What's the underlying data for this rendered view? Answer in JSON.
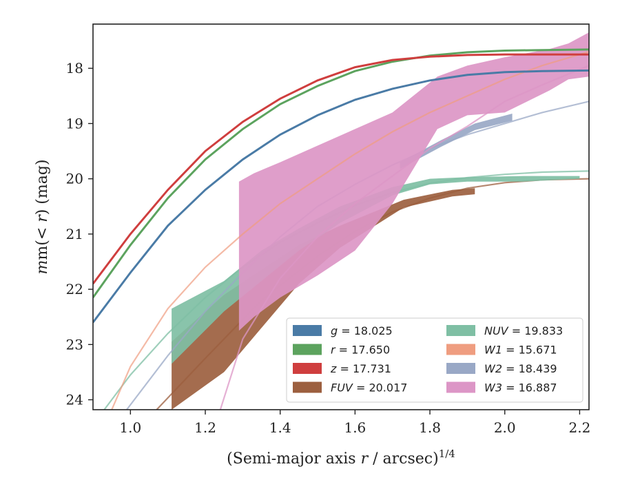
{
  "chart_data": {
    "type": "line",
    "xlabel_main": "(Semi-major axis ",
    "xlabel_var": "r",
    "xlabel_unit": " / arcsec)",
    "xlabel_power": "1/4",
    "ylabel_main": "m(< ",
    "ylabel_var": "r",
    "ylabel_unit": ") (mag)",
    "xlim": [
      0.9,
      2.225
    ],
    "ylim": [
      24.18,
      17.2
    ],
    "xticks": [
      1.0,
      1.2,
      1.4,
      1.6,
      1.8,
      2.0,
      2.2
    ],
    "xtick_labels": [
      "1.0",
      "1.2",
      "1.4",
      "1.6",
      "1.8",
      "2.0",
      "2.2"
    ],
    "yticks": [
      18,
      19,
      20,
      21,
      22,
      23,
      24
    ],
    "ytick_labels": [
      "18",
      "19",
      "20",
      "21",
      "22",
      "23",
      "24"
    ],
    "grid": false,
    "legend_position": "lower-right",
    "legend": [
      {
        "id": "g",
        "var": "g",
        "label": "g = 18.025",
        "color": "#4a7ba6"
      },
      {
        "id": "r",
        "var": "r",
        "label": "r = 17.650",
        "color": "#5ca35e"
      },
      {
        "id": "z",
        "var": "z",
        "label": "z = 17.731",
        "color": "#cf3e3e"
      },
      {
        "id": "fuv",
        "var": "FUV",
        "label": "FUV = 20.017",
        "color": "#9c5f3f"
      },
      {
        "id": "nuv",
        "var": "NUV",
        "label": "NUV = 19.833",
        "color": "#7fbfa4"
      },
      {
        "id": "w1",
        "var": "W1",
        "label": "W1 = 15.671",
        "color": "#ef9d80"
      },
      {
        "id": "w2",
        "var": "W2",
        "label": "W2 = 18.439",
        "color": "#99a8c6"
      },
      {
        "id": "w3",
        "var": "W3",
        "label": "W3 = 16.887",
        "color": "#dc96c6"
      }
    ],
    "series": [
      {
        "name": "g = 18.025",
        "kind": "line",
        "color": "#4a7ba6",
        "x": [
          0.9,
          1.0,
          1.1,
          1.2,
          1.3,
          1.4,
          1.5,
          1.6,
          1.7,
          1.8,
          1.9,
          2.0,
          2.1,
          2.225
        ],
        "y": [
          22.6,
          21.7,
          20.85,
          20.2,
          19.65,
          19.2,
          18.85,
          18.57,
          18.37,
          18.22,
          18.12,
          18.07,
          18.05,
          18.04
        ]
      },
      {
        "name": "r = 17.650",
        "kind": "line",
        "color": "#5ca35e",
        "x": [
          0.9,
          1.0,
          1.1,
          1.2,
          1.3,
          1.4,
          1.5,
          1.6,
          1.7,
          1.8,
          1.9,
          2.0,
          2.1,
          2.225
        ],
        "y": [
          22.15,
          21.2,
          20.35,
          19.65,
          19.1,
          18.65,
          18.32,
          18.05,
          17.88,
          17.77,
          17.71,
          17.68,
          17.67,
          17.66
        ]
      },
      {
        "name": "z = 17.731",
        "kind": "line",
        "color": "#cf3e3e",
        "x": [
          0.9,
          1.0,
          1.1,
          1.2,
          1.3,
          1.4,
          1.5,
          1.6,
          1.7,
          1.8,
          1.9,
          2.0,
          2.1,
          2.225
        ],
        "y": [
          21.9,
          21.0,
          20.2,
          19.5,
          18.97,
          18.55,
          18.22,
          17.98,
          17.85,
          17.79,
          17.76,
          17.75,
          17.75,
          17.75
        ]
      },
      {
        "name": "FUV = 20.017",
        "kind": "band",
        "color": "#9c5f3f",
        "x": [
          1.11,
          1.25,
          1.35,
          1.45,
          1.56,
          1.73,
          1.86,
          1.92
        ],
        "lo": [
          22.95,
          22.1,
          21.65,
          21.2,
          20.85,
          20.38,
          20.2,
          20.17
        ],
        "hi": [
          24.18,
          23.5,
          22.7,
          21.9,
          21.25,
          20.52,
          20.32,
          20.28
        ],
        "model_x": [
          1.07,
          1.2,
          1.35,
          1.5,
          1.6,
          1.7,
          1.8,
          1.9,
          2.0,
          2.1,
          2.225
        ],
        "model_y": [
          24.18,
          23.25,
          22.2,
          21.4,
          20.95,
          20.6,
          20.35,
          20.17,
          20.07,
          20.02,
          20.0
        ]
      },
      {
        "name": "NUV = 19.833",
        "kind": "band",
        "color": "#7fbfa4",
        "x": [
          1.11,
          1.25,
          1.35,
          1.45,
          1.56,
          1.7,
          1.8,
          1.9,
          2.05,
          2.2
        ],
        "lo": [
          22.35,
          21.85,
          21.3,
          20.9,
          20.5,
          20.15,
          20.0,
          19.97,
          19.95,
          19.95
        ],
        "hi": [
          23.35,
          22.4,
          21.85,
          21.3,
          20.8,
          20.3,
          20.1,
          20.05,
          20.05,
          20.0
        ],
        "model_x": [
          0.93,
          1.0,
          1.1,
          1.2,
          1.3,
          1.4,
          1.5,
          1.6,
          1.7,
          1.8,
          1.9,
          2.0,
          2.1,
          2.225
        ],
        "model_y": [
          24.18,
          23.55,
          22.8,
          22.15,
          21.6,
          21.15,
          20.8,
          20.48,
          20.25,
          20.08,
          19.98,
          19.92,
          19.88,
          19.86
        ]
      },
      {
        "name": "W1 = 15.671",
        "kind": "line",
        "color": "#ef9d80",
        "x": [
          0.95,
          1.0,
          1.1,
          1.2,
          1.3,
          1.4,
          1.5,
          1.6,
          1.7,
          1.8,
          1.9,
          2.0,
          2.1,
          2.225
        ],
        "y": [
          24.18,
          23.4,
          22.35,
          21.6,
          21.0,
          20.45,
          20.0,
          19.55,
          19.15,
          18.8,
          18.5,
          18.2,
          17.95,
          17.7
        ]
      },
      {
        "name": "W2 = 18.439",
        "kind": "band",
        "color": "#99a8c6",
        "x": [
          1.72,
          1.83,
          1.92,
          2.02
        ],
        "lo": [
          19.7,
          19.3,
          19.0,
          18.82
        ],
        "hi": [
          19.82,
          19.42,
          19.12,
          18.95
        ],
        "model_x": [
          0.99,
          1.1,
          1.2,
          1.3,
          1.4,
          1.5,
          1.6,
          1.7,
          1.8,
          1.9,
          2.0,
          2.1,
          2.225
        ],
        "model_y": [
          24.18,
          23.2,
          22.4,
          21.7,
          21.05,
          20.5,
          20.1,
          19.75,
          19.45,
          19.2,
          19.0,
          18.8,
          18.6
        ]
      },
      {
        "name": "W3 = 16.887",
        "kind": "band",
        "color": "#dc96c6",
        "x": [
          1.29,
          1.33,
          1.4,
          1.5,
          1.6,
          1.7,
          1.82,
          1.9,
          2.0,
          2.12,
          2.17,
          2.225
        ],
        "lo": [
          20.05,
          19.9,
          19.7,
          19.4,
          19.1,
          18.8,
          18.15,
          17.95,
          17.8,
          17.65,
          17.55,
          17.35
        ],
        "hi": [
          22.75,
          22.5,
          22.15,
          21.75,
          21.3,
          20.45,
          19.1,
          18.85,
          18.8,
          18.4,
          18.2,
          18.15
        ],
        "model_x": [
          1.24,
          1.3,
          1.4,
          1.5,
          1.6,
          1.7,
          1.8,
          1.9,
          2.0,
          2.1,
          2.225
        ],
        "model_y": [
          24.18,
          22.9,
          21.8,
          21.05,
          20.45,
          19.95,
          19.45,
          19.05,
          18.6,
          18.3,
          17.95
        ]
      }
    ]
  }
}
